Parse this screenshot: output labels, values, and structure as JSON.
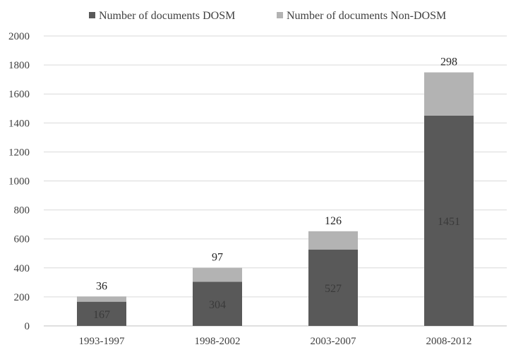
{
  "chart_data": {
    "type": "bar",
    "stacked": true,
    "title": "",
    "xlabel": "",
    "ylabel": "",
    "categories": [
      "1993-1997",
      "1998-2002",
      "2003-2007",
      "2008-2012"
    ],
    "series": [
      {
        "name": "Number of documents DOSM",
        "values": [
          167,
          304,
          527,
          1451
        ],
        "color": "#595959"
      },
      {
        "name": "Number of documents Non-DOSM",
        "values": [
          36,
          97,
          126,
          298
        ],
        "color": "#b3b3b3"
      }
    ],
    "ylim": [
      0,
      2000
    ],
    "yticks": [
      0,
      200,
      400,
      600,
      800,
      1000,
      1200,
      1400,
      1600,
      1800,
      2000
    ],
    "grid": true,
    "legend_position": "top-center"
  }
}
